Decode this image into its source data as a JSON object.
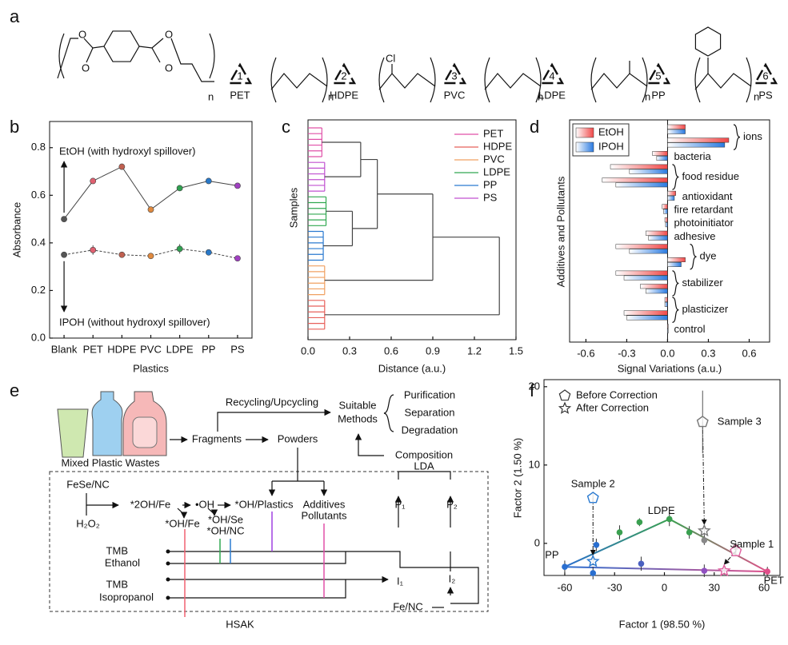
{
  "panel_labels": [
    "a",
    "b",
    "c",
    "d",
    "e",
    "f"
  ],
  "structures": {
    "repeat": "n",
    "oxygen": "O",
    "chlorine": "Cl",
    "items": [
      {
        "number": "1",
        "name": "PET"
      },
      {
        "number": "2",
        "name": "HDPE"
      },
      {
        "number": "3",
        "name": "PVC"
      },
      {
        "number": "4",
        "name": "LDPE"
      },
      {
        "number": "5",
        "name": "PP"
      },
      {
        "number": "6",
        "name": "PS"
      }
    ]
  },
  "chart_data": [
    {
      "type": "line",
      "xlabel": "Plastics",
      "ylabel": "Absorbance",
      "categories": [
        "Blank",
        "PET",
        "HDPE",
        "PVC",
        "LDPE",
        "PP",
        "PS"
      ],
      "point_colors": [
        "#555555",
        "#e06070",
        "#c06050",
        "#e08a40",
        "#30a050",
        "#2878c8",
        "#a040c0"
      ],
      "series": [
        {
          "name": "EtOH",
          "color": "#444444",
          "dashed": false,
          "values": [
            0.5,
            0.66,
            0.72,
            0.54,
            0.63,
            0.66,
            0.64
          ],
          "errors": [
            0.01,
            0.01,
            0.01,
            0.01,
            0.01,
            0.01,
            0.01
          ]
        },
        {
          "name": "IPOH",
          "color": "#444444",
          "dashed": true,
          "values": [
            0.35,
            0.37,
            0.35,
            0.345,
            0.375,
            0.36,
            0.335
          ],
          "errors": [
            0.01,
            0.02,
            0.01,
            0.01,
            0.02,
            0.01,
            0.01
          ]
        }
      ],
      "annotations": [
        "EtOH (with hydroxyl spillover)",
        "IPOH (without hydroxyl spillover)"
      ],
      "ylim": [
        0,
        0.91
      ],
      "yticks": [
        {
          "value": 0,
          "label": "0.0"
        },
        0.2,
        0.4,
        0.6,
        0.8
      ]
    },
    {
      "type": "dendrogram",
      "xlabel": "Distance (a.u.)",
      "ylabel": "Samples",
      "series": [
        {
          "name": "PET",
          "color": "#e050a8"
        },
        {
          "name": "HDPE",
          "color": "#e8605a"
        },
        {
          "name": "PVC",
          "color": "#f0a060"
        },
        {
          "name": "LDPE",
          "color": "#30a850"
        },
        {
          "name": "PP",
          "color": "#2a7ad0"
        },
        {
          "name": "PS",
          "color": "#c050d0"
        }
      ],
      "groups": [
        {
          "series": 0,
          "leaves": 6,
          "distance": 0.1
        },
        {
          "series": 5,
          "leaves": 6,
          "distance": 0.12
        },
        {
          "series": 3,
          "leaves": 6,
          "distance": 0.13
        },
        {
          "series": 4,
          "leaves": 6,
          "distance": 0.11
        },
        {
          "series": 2,
          "leaves": 6,
          "distance": 0.12
        },
        {
          "series": 1,
          "leaves": 6,
          "distance": 0.12
        }
      ],
      "tree": {
        "distance": 1.38,
        "children": [
          {
            "distance": 0.9,
            "children": [
              {
                "distance": 0.5,
                "children": [
                  {
                    "distance": 0.38,
                    "children": [
                      {
                        "group": 0
                      },
                      {
                        "group": 1
                      }
                    ]
                  },
                  {
                    "distance": 0.32,
                    "children": [
                      {
                        "group": 2
                      },
                      {
                        "group": 3
                      }
                    ]
                  }
                ]
              },
              {
                "group": 4
              }
            ]
          },
          {
            "group": 5
          }
        ]
      },
      "xlim": [
        0,
        1.5
      ],
      "xticks": [
        {
          "value": 0,
          "label": "0.0"
        },
        0.3,
        0.6,
        0.9,
        1.2,
        1.5
      ]
    },
    {
      "type": "hbar",
      "xlabel": "Signal Variations (a.u.)",
      "ylabel": "Additives and Pollutants",
      "groups": [
        {
          "label": "ions",
          "rows": 2
        },
        {
          "label": "bacteria",
          "rows": 1
        },
        {
          "label": "food residue",
          "rows": 2
        },
        {
          "label": "antioxidant",
          "rows": 1
        },
        {
          "label": "fire retardant",
          "rows": 1
        },
        {
          "label": "photoinitiator",
          "rows": 1
        },
        {
          "label": "adhesive",
          "rows": 1
        },
        {
          "label": "dye",
          "rows": 2
        },
        {
          "label": "stabilizer",
          "rows": 2
        },
        {
          "label": "plasticizer",
          "rows": 2
        },
        {
          "label": "control",
          "rows": 1
        }
      ],
      "series": [
        {
          "name": "EtOH",
          "color": "#f04848",
          "values": [
            0.13,
            0.45,
            -0.11,
            -0.42,
            -0.48,
            0.06,
            -0.04,
            -0.02,
            -0.16,
            -0.38,
            0.13,
            -0.38,
            -0.2,
            -0.02,
            -0.32,
            0.0
          ]
        },
        {
          "name": "IPOH",
          "color": "#2a7ae0",
          "values": [
            0.13,
            0.42,
            -0.08,
            -0.28,
            -0.38,
            0.05,
            -0.03,
            -0.015,
            -0.14,
            -0.28,
            0.1,
            -0.32,
            -0.16,
            -0.02,
            -0.3,
            0.0
          ]
        }
      ],
      "xlim": [
        -0.72,
        0.75
      ],
      "xticks": [
        -0.6,
        -0.3,
        {
          "value": 0,
          "label": "0.0"
        },
        0.3,
        0.6
      ]
    },
    {
      "type": "scatter",
      "xlabel": "Factor 1 (98.50 %)",
      "ylabel": "Factor 2 (1.50 %)",
      "points": {
        "x": [
          -60,
          -43,
          -41,
          -27,
          -15,
          3,
          15,
          24,
          43,
          62,
          24,
          -14
        ],
        "y": [
          -3,
          -3.8,
          -0.2,
          1.4,
          2.7,
          3.1,
          1.4,
          0.4,
          -0.5,
          -3.6,
          -3.5,
          -2.6
        ],
        "errors": [
          0.8,
          0.8,
          0.8,
          0.9,
          0.5,
          0.9,
          0.8,
          0.6,
          0.6,
          0.6,
          0.8,
          0.9
        ],
        "colors": [
          "#2a6fd0",
          "#2a6fd0",
          "#2a6fd0",
          "#3aa050",
          "#3aa050",
          "#3aa050",
          "#3aa050",
          "#888888",
          "#a07080",
          "#e0508a",
          "#9050c0",
          "#4a60c0"
        ]
      },
      "annotations": [
        {
          "text": "PP",
          "point": 0
        },
        {
          "text": "LDPE",
          "point": 5
        },
        {
          "text": "PET",
          "point": 9
        }
      ],
      "sample_labels": [
        "Sample 1",
        "Sample 2",
        "Sample 3"
      ],
      "sample_colors": [
        "#e060a0",
        "#2a7ad0",
        "#777777"
      ],
      "series": [
        {
          "name": "Before Correction",
          "marker": "pentagon",
          "x": [
            43,
            -43,
            23
          ],
          "y": [
            -1,
            5.8,
            15.5
          ],
          "errors": [
            0.6,
            0.6,
            4
          ]
        },
        {
          "name": "After Correction",
          "marker": "star",
          "x": [
            36,
            -43,
            24
          ],
          "y": [
            -3.5,
            -2.3,
            1.6
          ],
          "errors": [
            0.5,
            0.5,
            0.6
          ]
        }
      ],
      "xlim": [
        -72.5,
        69.6
      ],
      "xticks": [
        -60,
        -30,
        0,
        30,
        60
      ],
      "ylim": [
        -4.1,
        20.9
      ],
      "yticks": [
        0,
        10,
        20
      ]
    }
  ],
  "process": {
    "wastes": "Mixed Plastic Wastes",
    "recycling": "Recycling/Upcycling",
    "fragments": "Fragments",
    "powders": "Powders",
    "methods": [
      "Suitable",
      "Methods"
    ],
    "outcomes": [
      "Purification",
      "Separation",
      "Degradation"
    ],
    "composition": "Composition",
    "lda": "LDA",
    "catalyst": "FeSe/NC",
    "peroxide": "H₂O₂",
    "adsorbed": "*2OH/Fe",
    "radical": "•OH",
    "plastics": "*OH/Plastics",
    "pollutants": [
      "Additives",
      "Pollutants"
    ],
    "sites": [
      "*OH/Fe",
      "*OH/Se",
      "*OH/NC"
    ],
    "probes": [
      "TMB",
      "Ethanol",
      "TMB",
      "Isopropanol"
    ],
    "signals": [
      "P₁",
      "P₂",
      "I₁",
      "I₂"
    ],
    "reference": "Fe/NC",
    "kit": "HSAK"
  }
}
